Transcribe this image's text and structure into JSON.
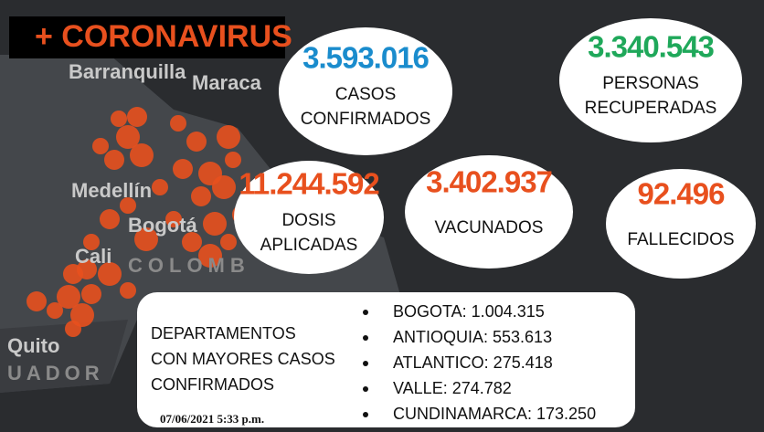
{
  "header": {
    "title": "+ CORONAVIRUS"
  },
  "map_labels": [
    "Barranquilla",
    "Maraca",
    "Medellín",
    "Bogotá",
    "Cali",
    "COLOMB",
    "Quito",
    "UADOR"
  ],
  "stats": [
    {
      "value": "3.593.016",
      "label": [
        "CASOS",
        "CONFIRMADOS"
      ]
    },
    {
      "value": "3.340.543",
      "label": [
        "PERSONAS",
        "RECUPERADAS"
      ]
    },
    {
      "value": "11.244.592",
      "label": [
        "DOSIS",
        "APLICADAS"
      ]
    },
    {
      "value": "3.402.937",
      "label": [
        "VACUNADOS"
      ]
    },
    {
      "value": "92.496",
      "label": [
        "FALLECIDOS"
      ]
    }
  ],
  "departments": {
    "heading": [
      "DEPARTAMENTOS",
      "CON MAYORES CASOS",
      "CONFIRMADOS"
    ],
    "items": [
      "BOGOTA: 1.004.315",
      "ANTIOQUIA: 553.613",
      "ATLANTICO: 275.418",
      "VALLE: 274.782",
      "CUNDINAMARCA: 173.250"
    ],
    "date": "07/06/2021  5:33 p.m."
  }
}
